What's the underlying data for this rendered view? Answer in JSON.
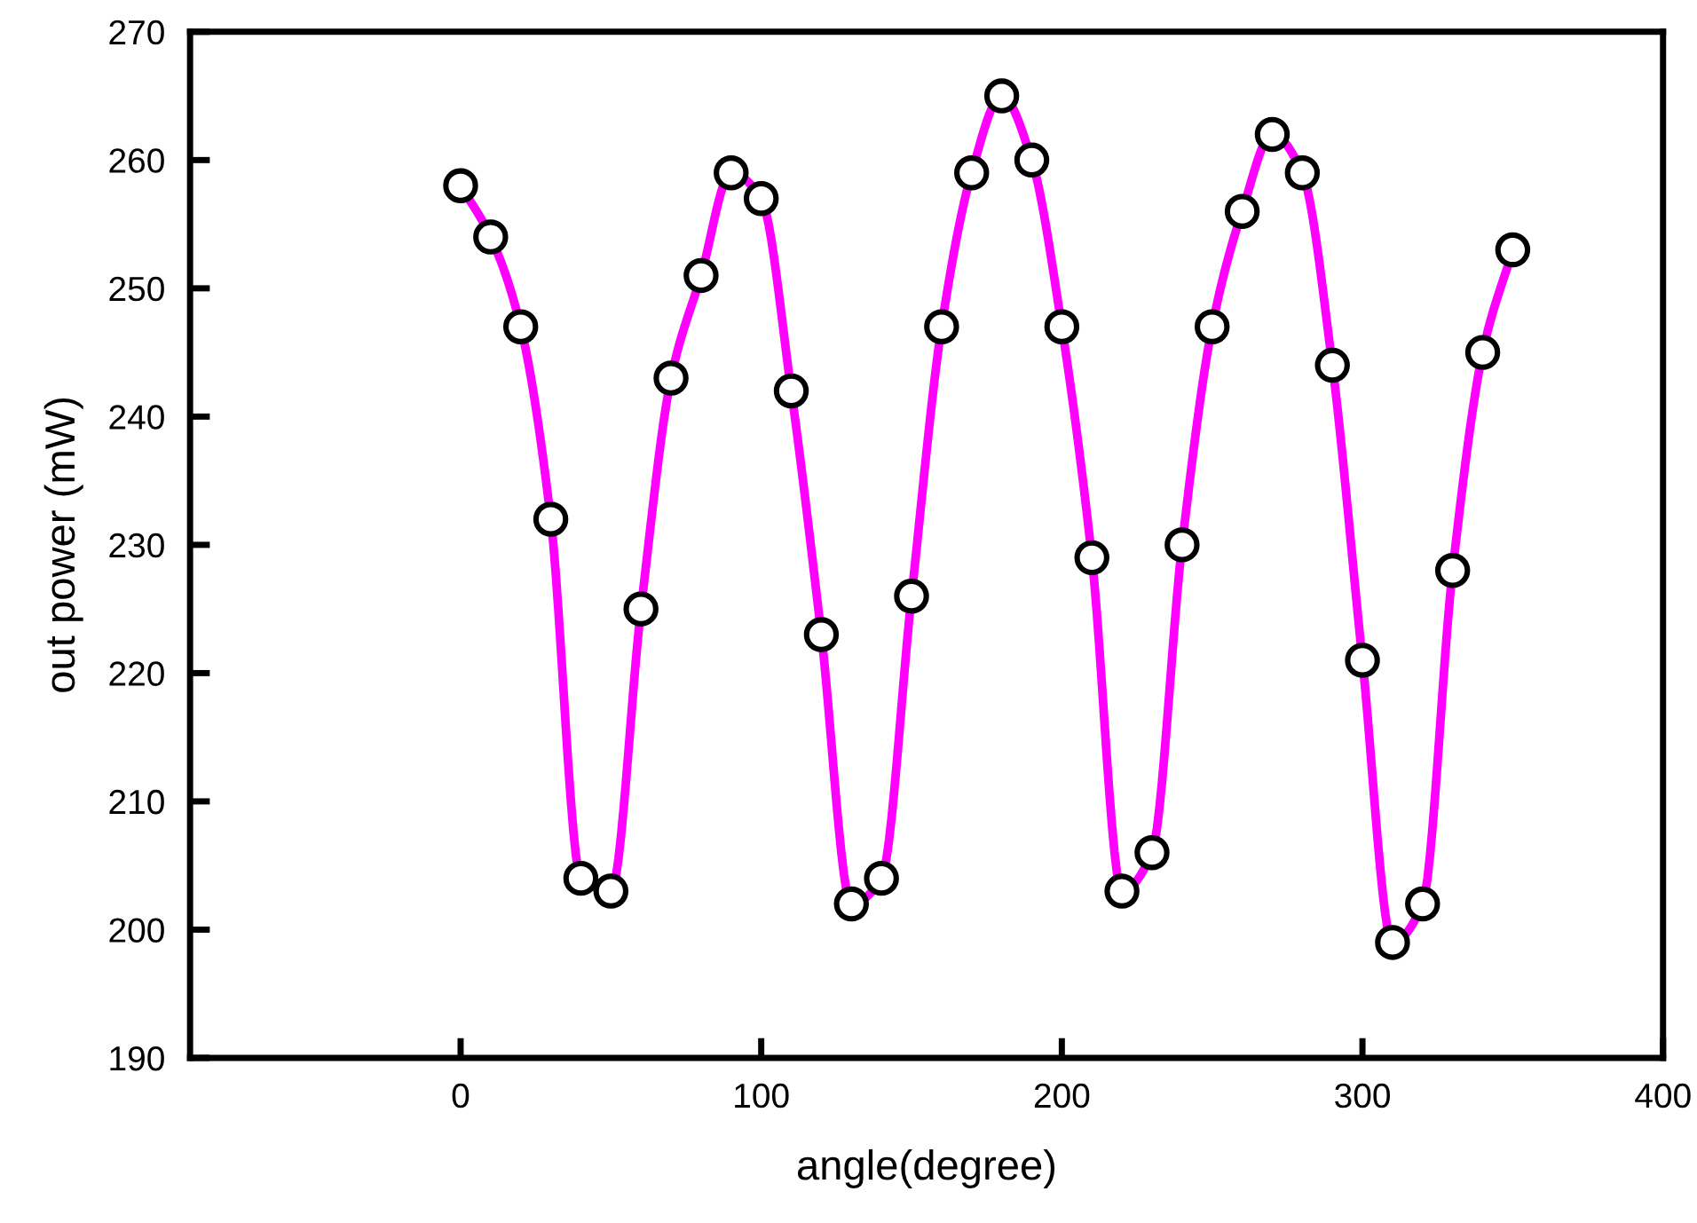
{
  "chart_data": {
    "type": "line",
    "xlabel": "angle(degree)",
    "ylabel": "out power (mW)",
    "x": [
      0,
      10,
      20,
      30,
      40,
      50,
      60,
      70,
      80,
      90,
      100,
      110,
      120,
      130,
      140,
      150,
      160,
      170,
      180,
      190,
      200,
      210,
      220,
      230,
      240,
      250,
      260,
      270,
      280,
      290,
      300,
      310,
      320,
      330,
      340,
      350
    ],
    "series": [
      {
        "color": "#ff00ff",
        "values": [
          258,
          254,
          247,
          232,
          204,
          203,
          225,
          243,
          251,
          259,
          257,
          242,
          223,
          202,
          204,
          226,
          247,
          259,
          265,
          260,
          247,
          229,
          203,
          206,
          230,
          247,
          256,
          262,
          259,
          244,
          221,
          199,
          202,
          228,
          245,
          253
        ]
      }
    ],
    "xlim": [
      -90,
      400
    ],
    "xticks": [
      0,
      100,
      200,
      300,
      400
    ],
    "ylim": [
      190,
      270
    ],
    "yticks": [
      190,
      200,
      210,
      220,
      230,
      240,
      250,
      260,
      270
    ],
    "marker": "circle",
    "line_style": "solid",
    "grid": false
  }
}
